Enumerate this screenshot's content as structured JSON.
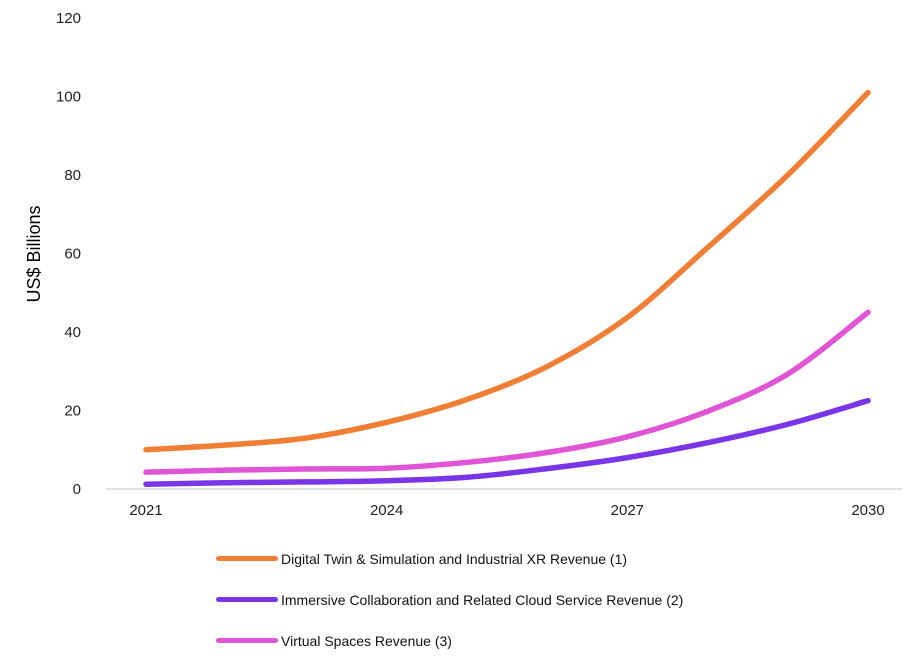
{
  "chart_data": {
    "type": "line",
    "ylabel": "US$ Billions",
    "xlabel": "",
    "x": [
      2021,
      2022,
      2023,
      2024,
      2025,
      2026,
      2027,
      2028,
      2029,
      2030
    ],
    "xticks": [
      "2021",
      "2024",
      "2027",
      "2030"
    ],
    "ylim": [
      0,
      120
    ],
    "yticks": [
      "0",
      "20",
      "40",
      "60",
      "80",
      "100",
      "120"
    ],
    "grid": false,
    "legend_position": "bottom",
    "series": [
      {
        "name": "Digital Twin & Simulation and Industrial XR Revenue (1)",
        "color": "#f07f35",
        "values": [
          10.0,
          11.2,
          13.0,
          17.0,
          22.8,
          31.2,
          43.7,
          61.5,
          80.0,
          101.0
        ]
      },
      {
        "name": "Immersive Collaboration and Related Cloud Service Revenue (2)",
        "color": "#7b35e8",
        "values": [
          1.2,
          1.6,
          1.8,
          2.1,
          3.0,
          5.2,
          8.0,
          11.8,
          16.5,
          22.5
        ]
      },
      {
        "name": "Virtual Spaces Revenue (3)",
        "color": "#e054d6",
        "values": [
          4.3,
          4.8,
          5.1,
          5.3,
          6.8,
          9.3,
          13.3,
          19.8,
          29.3,
          45.0
        ]
      }
    ]
  }
}
